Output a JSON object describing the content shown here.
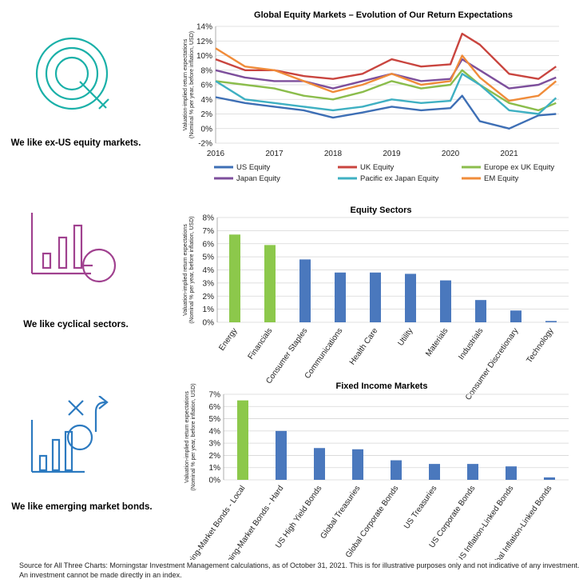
{
  "panels": [
    {
      "label": "We like ex-US equity markets.",
      "icon": "magnifier-target-icon",
      "color": "#1ab0a8"
    },
    {
      "label": "We like cyclical sectors.",
      "icon": "bar-chart-magnifier-icon",
      "color": "#a0418f"
    },
    {
      "label": "We like emerging market bonds.",
      "icon": "bar-chart-arrows-icon",
      "color": "#2c7ac0"
    }
  ],
  "ylabel_line1": "Valuation-implied return expectations",
  "ylabel_line2": "(Nominal % per year, before inflation, USD)",
  "footnote": [
    "Source for All Three Charts: Morningstar Investment Management calculations, as of October 31, 2021. This is for illustrative purposes only and not indicative of any investment.",
    "An investment cannot be made directly in an index."
  ],
  "chart_data": [
    {
      "type": "line",
      "title": "Global Equity Markets – Evolution of Our Return Expectations",
      "x": [
        "2016",
        "2016.5",
        "2017",
        "2017.5",
        "2018",
        "2018.5",
        "2019",
        "2019.5",
        "2020",
        "2020.2",
        "2020.5",
        "2021",
        "2021.5",
        "2021.8"
      ],
      "xticks": [
        "2016",
        "2017",
        "2018",
        "2019",
        "2020",
        "2021"
      ],
      "yticks": [
        "-2%",
        "0%",
        "2%",
        "4%",
        "6%",
        "8%",
        "10%",
        "12%",
        "14%"
      ],
      "ylim": [
        -2,
        14
      ],
      "legend": "bottom",
      "series": [
        {
          "name": "US Equity",
          "color": "#3e6fb5",
          "values": [
            4.3,
            3.5,
            3.0,
            2.5,
            1.5,
            2.2,
            3.0,
            2.5,
            2.8,
            4.5,
            1.0,
            0.0,
            1.8,
            2.0
          ]
        },
        {
          "name": "UK Equity",
          "color": "#c9453f",
          "values": [
            9.5,
            8.0,
            8.0,
            7.2,
            6.8,
            7.5,
            9.5,
            8.5,
            8.8,
            13.0,
            11.5,
            7.5,
            6.8,
            8.5
          ]
        },
        {
          "name": "Europe ex UK Equity",
          "color": "#8bbd4c",
          "values": [
            6.5,
            6.0,
            5.5,
            4.5,
            4.0,
            5.0,
            6.5,
            5.5,
            6.0,
            8.0,
            6.0,
            3.5,
            2.5,
            3.5
          ]
        },
        {
          "name": "Japan Equity",
          "color": "#7d4f9c",
          "values": [
            8.0,
            7.0,
            6.5,
            6.5,
            5.5,
            6.5,
            7.5,
            6.5,
            6.8,
            9.5,
            8.0,
            5.5,
            6.0,
            7.0
          ]
        },
        {
          "name": "Pacific ex Japan Equity",
          "color": "#3fb0c2",
          "values": [
            6.5,
            4.0,
            3.5,
            3.0,
            2.5,
            3.0,
            4.0,
            3.5,
            3.8,
            7.5,
            6.0,
            2.5,
            2.0,
            4.2
          ]
        },
        {
          "name": "EM Equity",
          "color": "#f08c3a",
          "values": [
            11.0,
            8.5,
            8.0,
            6.5,
            5.0,
            6.0,
            7.5,
            6.0,
            6.5,
            10.0,
            7.0,
            3.8,
            4.5,
            6.5
          ]
        }
      ]
    },
    {
      "type": "bar",
      "title": "Equity Sectors",
      "categories": [
        "Energy",
        "Financials",
        "Consumer Staples",
        "Communications",
        "Health Care",
        "Utility",
        "Materials",
        "Industrials",
        "Consumer Discretionary",
        "Technology"
      ],
      "values": [
        6.7,
        5.9,
        4.8,
        3.8,
        3.8,
        3.7,
        3.2,
        1.7,
        0.9,
        0.1
      ],
      "highlight": [
        0,
        1
      ],
      "yticks": [
        "0%",
        "1%",
        "2%",
        "3%",
        "4%",
        "5%",
        "6%",
        "7%",
        "8%"
      ],
      "ylim": [
        0,
        8
      ]
    },
    {
      "type": "bar",
      "title": "Fixed Income Markets",
      "categories": [
        "Emerging-Market Bonds - Local",
        "Emerging-Market Bonds - Hard",
        "US High Yield Bonds",
        "Global Treasuries",
        "Global Corporate Bonds",
        "US Treasuries",
        "US Corporate Bonds",
        "US Inflation-Linked Bonds",
        "Global Inflation-Linked Bonds"
      ],
      "values": [
        6.5,
        4.0,
        2.6,
        2.5,
        1.6,
        1.3,
        1.3,
        1.1,
        0.2
      ],
      "highlight": [
        0
      ],
      "yticks": [
        "0%",
        "1%",
        "2%",
        "3%",
        "4%",
        "5%",
        "6%",
        "7%"
      ],
      "ylim": [
        0,
        7
      ]
    }
  ],
  "colors": {
    "bar": "#4a78bd",
    "highlight": "#8cc84b",
    "grid": "#d6d6d6"
  }
}
